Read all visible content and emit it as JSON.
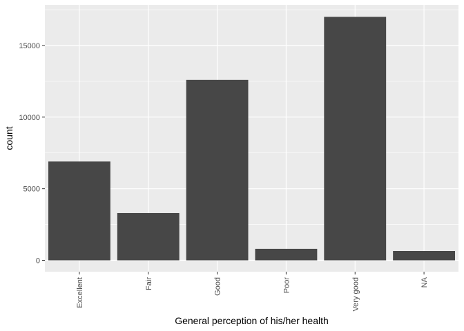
{
  "chart_data": {
    "type": "bar",
    "categories": [
      "Excellent",
      "Fair",
      "Good",
      "Poor",
      "Very good",
      "NA"
    ],
    "values": [
      6900,
      3300,
      12600,
      800,
      17000,
      650
    ],
    "title": "",
    "xlabel": "General perception of his/her health",
    "ylabel": "count",
    "ylim": [
      0,
      17000
    ],
    "yticks": [
      0,
      5000,
      10000,
      15000
    ],
    "grid": true,
    "legend": "none",
    "colors": {
      "panel": "#ebebeb",
      "grid_major": "#ffffff",
      "bar": "#474747",
      "tick_text": "#4d4d4d",
      "axis_text": "#000000"
    }
  }
}
